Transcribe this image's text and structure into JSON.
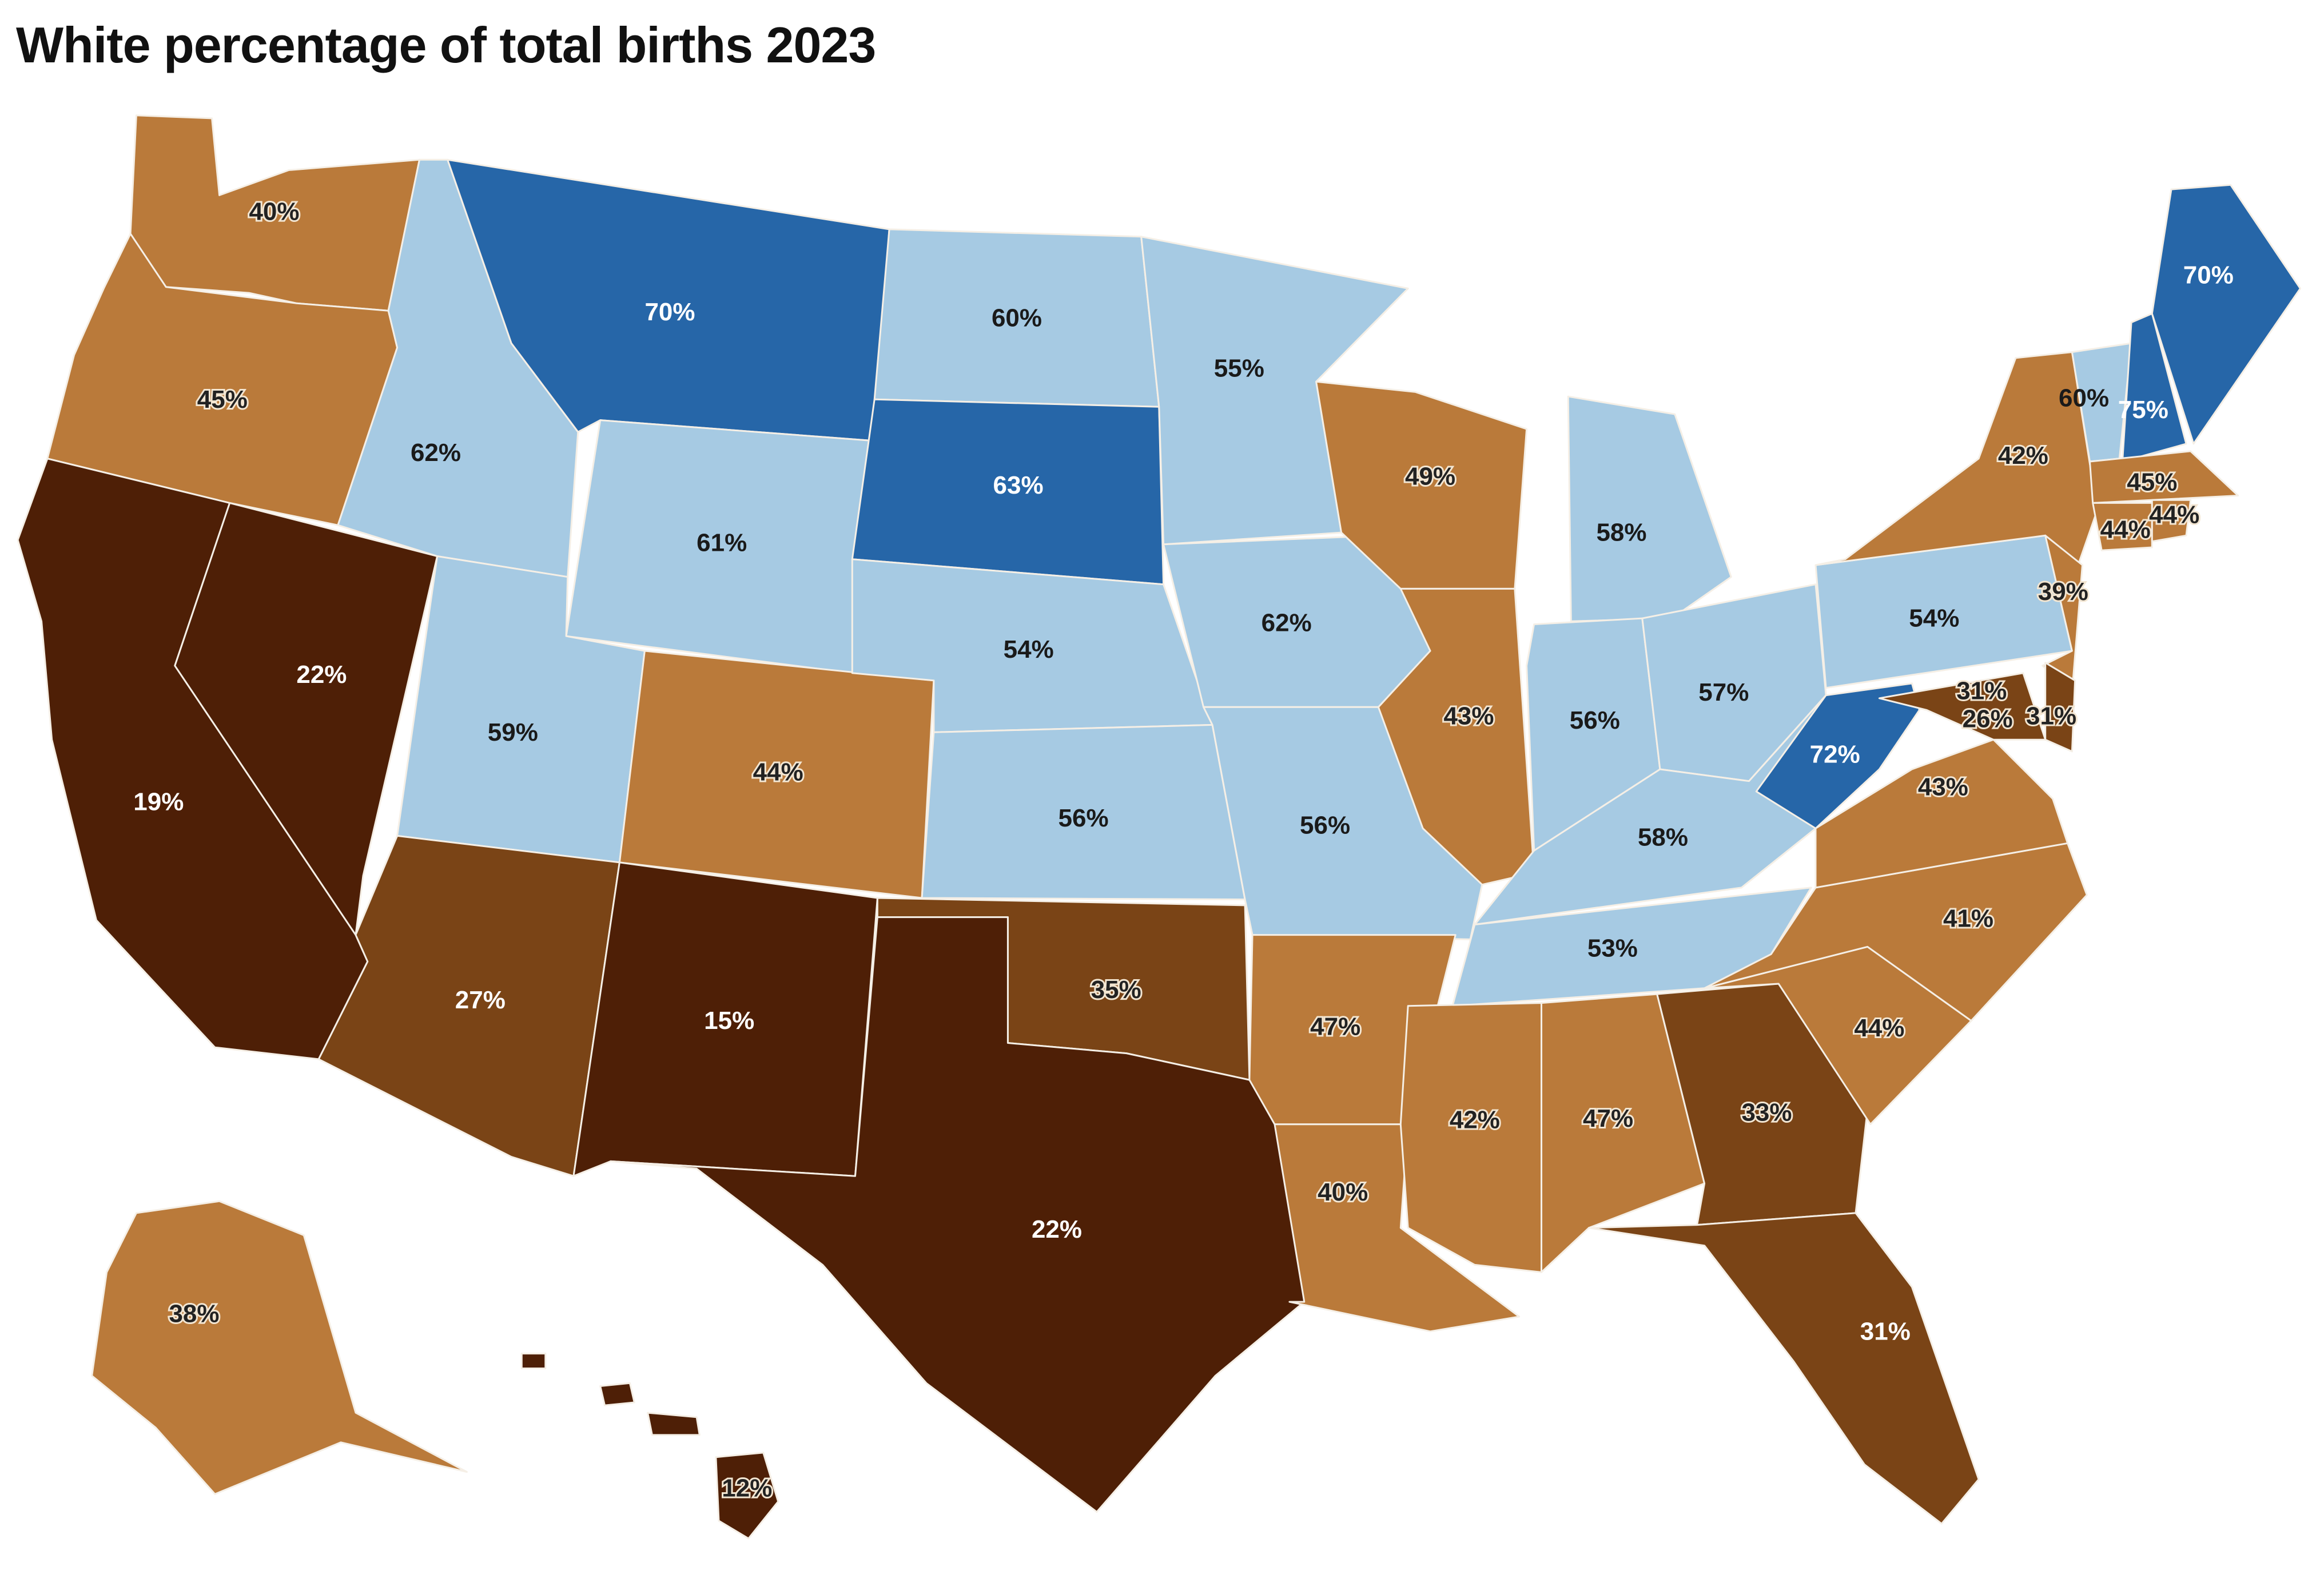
{
  "title": "White percentage of total births 2023",
  "palette": {
    "dark_blue": "#2666a8",
    "light_blue": "#a6cae3",
    "tan": "#ba7a3a",
    "mid_brown": "#7a4416",
    "dark_brown": "#4e1f06"
  },
  "states": [
    {
      "abbr": "WA",
      "value": "40%",
      "color": "tan"
    },
    {
      "abbr": "OR",
      "value": "45%",
      "color": "tan"
    },
    {
      "abbr": "CA",
      "value": "19%",
      "color": "dark_brown"
    },
    {
      "abbr": "NV",
      "value": "22%",
      "color": "dark_brown"
    },
    {
      "abbr": "ID",
      "value": "62%",
      "color": "light_blue"
    },
    {
      "abbr": "MT",
      "value": "70%",
      "color": "dark_blue"
    },
    {
      "abbr": "WY",
      "value": "61%",
      "color": "light_blue"
    },
    {
      "abbr": "UT",
      "value": "59%",
      "color": "light_blue"
    },
    {
      "abbr": "AZ",
      "value": "27%",
      "color": "mid_brown"
    },
    {
      "abbr": "CO",
      "value": "44%",
      "color": "tan"
    },
    {
      "abbr": "NM",
      "value": "15%",
      "color": "dark_brown"
    },
    {
      "abbr": "ND",
      "value": "60%",
      "color": "light_blue"
    },
    {
      "abbr": "SD",
      "value": "63%",
      "color": "dark_blue"
    },
    {
      "abbr": "NE",
      "value": "54%",
      "color": "light_blue"
    },
    {
      "abbr": "KS",
      "value": "56%",
      "color": "light_blue"
    },
    {
      "abbr": "OK",
      "value": "35%",
      "color": "mid_brown"
    },
    {
      "abbr": "TX",
      "value": "22%",
      "color": "dark_brown"
    },
    {
      "abbr": "MN",
      "value": "55%",
      "color": "light_blue"
    },
    {
      "abbr": "IA",
      "value": "62%",
      "color": "light_blue"
    },
    {
      "abbr": "MO",
      "value": "56%",
      "color": "light_blue"
    },
    {
      "abbr": "AR",
      "value": "47%",
      "color": "tan"
    },
    {
      "abbr": "LA",
      "value": "40%",
      "color": "tan"
    },
    {
      "abbr": "WI",
      "value": "49%",
      "color": "tan"
    },
    {
      "abbr": "IL",
      "value": "43%",
      "color": "tan"
    },
    {
      "abbr": "MI",
      "value": "58%",
      "color": "light_blue"
    },
    {
      "abbr": "IN",
      "value": "56%",
      "color": "light_blue"
    },
    {
      "abbr": "OH",
      "value": "57%",
      "color": "light_blue"
    },
    {
      "abbr": "KY",
      "value": "58%",
      "color": "light_blue"
    },
    {
      "abbr": "TN",
      "value": "53%",
      "color": "light_blue"
    },
    {
      "abbr": "MS",
      "value": "42%",
      "color": "tan"
    },
    {
      "abbr": "AL",
      "value": "47%",
      "color": "tan"
    },
    {
      "abbr": "GA",
      "value": "33%",
      "color": "mid_brown"
    },
    {
      "abbr": "FL",
      "value": "31%",
      "color": "mid_brown"
    },
    {
      "abbr": "SC",
      "value": "44%",
      "color": "tan"
    },
    {
      "abbr": "NC",
      "value": "41%",
      "color": "tan"
    },
    {
      "abbr": "VA",
      "value": "43%",
      "color": "tan"
    },
    {
      "abbr": "WV",
      "value": "72%",
      "color": "dark_blue"
    },
    {
      "abbr": "PA",
      "value": "54%",
      "color": "light_blue"
    },
    {
      "abbr": "NY",
      "value": "42%",
      "color": "tan"
    },
    {
      "abbr": "NJ",
      "value": "39%",
      "color": "tan"
    },
    {
      "abbr": "DE",
      "value": "31%",
      "color": "mid_brown"
    },
    {
      "abbr": "MD",
      "value": "31%",
      "color": "mid_brown"
    },
    {
      "abbr": "DC",
      "value": "26%",
      "color": "mid_brown"
    },
    {
      "abbr": "VT",
      "value": "60%",
      "color": "light_blue"
    },
    {
      "abbr": "NH",
      "value": "75%",
      "color": "dark_blue"
    },
    {
      "abbr": "ME",
      "value": "70%",
      "color": "dark_blue"
    },
    {
      "abbr": "MA",
      "value": "45%",
      "color": "tan"
    },
    {
      "abbr": "CT",
      "value": "44%",
      "color": "tan"
    },
    {
      "abbr": "RI",
      "value": "44%",
      "color": "tan"
    },
    {
      "abbr": "AK",
      "value": "38%",
      "color": "tan"
    },
    {
      "abbr": "HI",
      "value": "12%",
      "color": "dark_brown"
    }
  ]
}
